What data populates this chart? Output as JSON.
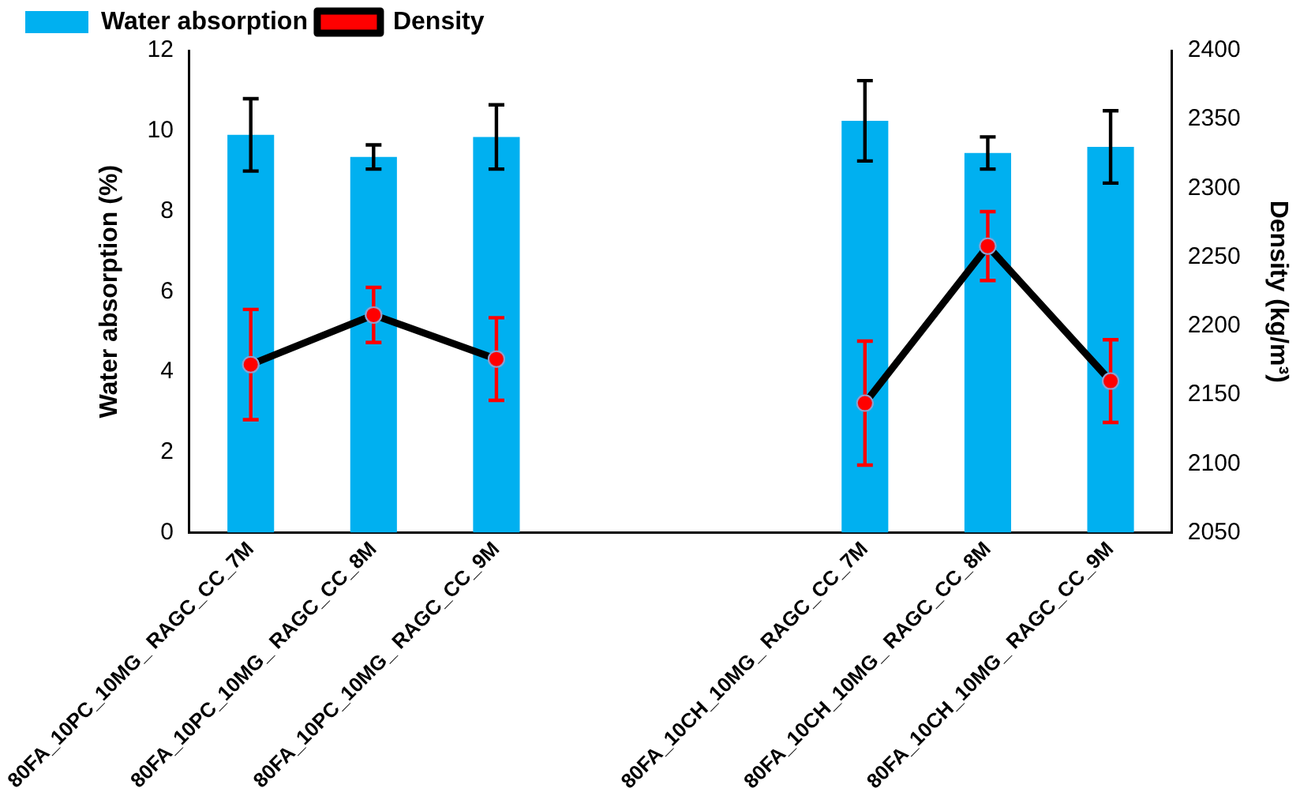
{
  "chart_data": {
    "type": "bar",
    "xlabel": null,
    "ylabel": "Water absorption (%)",
    "y2label": "Density (kg/m³)",
    "categories": [
      "80FA_10PC_10MG_ RAGC_CC_7M",
      "80FA_10PC_10MG_ RAGC_CC_8M",
      "80FA_10PC_10MG_ RAGC_CC_9M",
      null,
      null,
      "80FA_10CH_10MG_ RAGC_CC_7M",
      "80FA_10CH_10MG_ RAGC_CC_8M",
      "80FA_10CH_10MG_ RAGC_CC_9M"
    ],
    "series": [
      {
        "name": "Water absorption",
        "color": "#00b0f0",
        "values": [
          9.9,
          9.35,
          9.85,
          null,
          null,
          10.25,
          9.45,
          9.6
        ],
        "errors": [
          0.9,
          0.3,
          0.8,
          null,
          null,
          1.0,
          0.4,
          0.9
        ]
      },
      {
        "name": "Density",
        "type": "line",
        "axis": "y2",
        "color": "#ff0000",
        "values": [
          2172,
          2208,
          2176,
          null,
          null,
          2144,
          2258,
          2160
        ],
        "errors": [
          40,
          20,
          30,
          null,
          null,
          45,
          25,
          30
        ]
      }
    ],
    "ylim": [
      0,
      12
    ],
    "yticks": [
      0,
      2,
      4,
      6,
      8,
      10,
      12
    ],
    "y2lim": [
      2050,
      2400
    ],
    "y2ticks": [
      2050,
      2100,
      2150,
      2200,
      2250,
      2300,
      2350,
      2400
    ],
    "grid": false,
    "legend": "top left",
    "marker": "circle",
    "line_style": "solid"
  }
}
